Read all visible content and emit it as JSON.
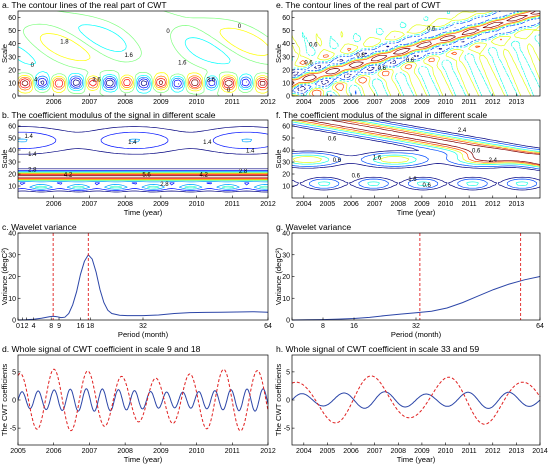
{
  "chart_data": [
    {
      "id": "a",
      "type": "contour",
      "title": "a. The contour lines of the real part of CWT",
      "xlabel": "",
      "ylabel": "Scale",
      "xlim": [
        2005,
        2012
      ],
      "ylim": [
        0,
        65
      ],
      "xticks": [
        "2006",
        "2007",
        "2008",
        "2009",
        "2010",
        "2011",
        "2012"
      ],
      "yticks": [
        "0",
        "10",
        "20",
        "30",
        "40",
        "50",
        "60"
      ],
      "contour_labels": [
        "0",
        "1.8",
        "4",
        "3.6",
        "1.6",
        "0",
        "1.6",
        "3.6",
        "0",
        "0"
      ]
    },
    {
      "id": "b",
      "type": "contour",
      "title": "b. The coefficient modulus of the signal in different scale",
      "xlabel": "Time (year)",
      "ylabel": "Scale",
      "xlim": [
        2005,
        2012
      ],
      "ylim": [
        0,
        65
      ],
      "xticks": [
        "2006",
        "2007",
        "2008",
        "2009",
        "2010",
        "2011",
        "2012"
      ],
      "yticks": [
        "10",
        "20",
        "30",
        "40",
        "50",
        "60"
      ],
      "contour_labels": [
        "1.4",
        "1.4",
        "1.4",
        "2.8",
        "2.8",
        "4.2",
        "5.6",
        "4.2",
        "2.8",
        "1.4",
        "1.4"
      ]
    },
    {
      "id": "c",
      "type": "line",
      "title": "c. Wavelet variance",
      "xlabel": "Period (month)",
      "ylabel": "Variance (degC²)",
      "xlim": [
        0,
        64
      ],
      "ylim": [
        0,
        40
      ],
      "xticks": [
        "0",
        "1",
        "2",
        "4",
        "8",
        "9",
        "16",
        "18",
        "32",
        "64"
      ],
      "yticks": [
        "0",
        "10",
        "20",
        "30",
        "40"
      ],
      "x": [
        0,
        2,
        4,
        6,
        8,
        9,
        10,
        11,
        12,
        13,
        14,
        15,
        16,
        17,
        18,
        19,
        20,
        21,
        22,
        23,
        24,
        26,
        28,
        30,
        32,
        36,
        40,
        44,
        48,
        52,
        56,
        60,
        64
      ],
      "series": [
        {
          "values": [
            0,
            0.1,
            0.3,
            0.8,
            1.5,
            1.7,
            1.5,
            1.1,
            1.3,
            3,
            7,
            13,
            21,
            27,
            30,
            28,
            22,
            14,
            8,
            4.5,
            3,
            2.2,
            2,
            2,
            2,
            2.3,
            3,
            3.4,
            3.5,
            3.6,
            3.7,
            3.8,
            3.6
          ]
        }
      ],
      "markers": [
        9,
        18
      ]
    },
    {
      "id": "d",
      "type": "line",
      "title": "d. Whole signal of CWT coefficient in scale 9 and 18",
      "xlabel": "Time (year)",
      "ylabel": "The CWT coefficients",
      "xlim": [
        2005,
        2012
      ],
      "ylim": [
        -8,
        8
      ],
      "xticks": [
        "2005",
        "2006",
        "2007",
        "2008",
        "2009",
        "2010",
        "2011",
        "2012"
      ],
      "yticks": [
        "-5",
        "0",
        "5"
      ],
      "series": [
        {
          "scale": 9,
          "period_years": 0.45,
          "amplitude": 2.0
        },
        {
          "scale": 18,
          "period_years": 0.95,
          "amplitude": 5.5
        }
      ]
    },
    {
      "id": "e",
      "type": "contour",
      "title": "e. The contour lines of the real part of CWT",
      "xlabel": "",
      "ylabel": "Scale",
      "xlim": [
        2003.5,
        2014
      ],
      "ylim": [
        0,
        65
      ],
      "xticks": [
        "2004",
        "2005",
        "2006",
        "2007",
        "2008",
        "2009",
        "2010",
        "2011",
        "2012",
        "2013"
      ],
      "yticks": [
        "0",
        "10",
        "20",
        "30",
        "40",
        "50",
        "60"
      ],
      "contour_labels": [
        "0.6",
        "0.6",
        "0.6",
        "0.6",
        "0.6",
        "0.6"
      ]
    },
    {
      "id": "f",
      "type": "contour",
      "title": "f. The coefficient modulus of the signal in different scale",
      "xlabel": "Time (year)",
      "ylabel": "Scale",
      "xlim": [
        2003.5,
        2014
      ],
      "ylim": [
        0,
        65
      ],
      "xticks": [
        "2004",
        "2005",
        "2006",
        "2007",
        "2008",
        "2009",
        "2010",
        "2011",
        "2012",
        "2013"
      ],
      "yticks": [
        "10",
        "20",
        "30",
        "40",
        "50",
        "60"
      ],
      "contour_labels": [
        "2.4",
        "0.6",
        "0.6",
        "1.6",
        "0.6",
        "1.6",
        "0.6",
        "0.6",
        "2.4"
      ]
    },
    {
      "id": "g",
      "type": "line",
      "title": "g. Wavelet variance",
      "xlabel": "Period (month)",
      "ylabel": "Variance (degC²)",
      "xlim": [
        0,
        64
      ],
      "ylim": [
        0,
        40
      ],
      "xticks": [
        "0",
        "8",
        "16",
        "32",
        "64"
      ],
      "yticks": [
        "0",
        "10",
        "20",
        "30",
        "40"
      ],
      "x": [
        0,
        4,
        8,
        12,
        16,
        20,
        24,
        28,
        32,
        36,
        40,
        44,
        48,
        52,
        56,
        60,
        64
      ],
      "series": [
        {
          "values": [
            0,
            0.1,
            0.2,
            0.4,
            0.7,
            1.2,
            2,
            2.7,
            3.3,
            4,
            5.5,
            8,
            11,
            14,
            16.5,
            18.5,
            20
          ]
        }
      ],
      "markers": [
        33,
        59
      ]
    },
    {
      "id": "h",
      "type": "line",
      "title": "h. Whole signal of CWT coefficient in scale 33 and 59",
      "xlabel": "Time (year)",
      "ylabel": "The CWT coefficients",
      "xlim": [
        2003.5,
        2014
      ],
      "ylim": [
        -8,
        8
      ],
      "xticks": [
        "2004",
        "2005",
        "2006",
        "2007",
        "2008",
        "2009",
        "2010",
        "2011",
        "2012",
        "2013",
        "2014"
      ],
      "yticks": [
        "-5",
        "0",
        "5"
      ],
      "series": [
        {
          "scale": 33,
          "period_years": 1.75,
          "amplitude": 1.5
        },
        {
          "scale": 59,
          "period_years": 3.2,
          "amplitude": 4.5
        }
      ]
    }
  ]
}
